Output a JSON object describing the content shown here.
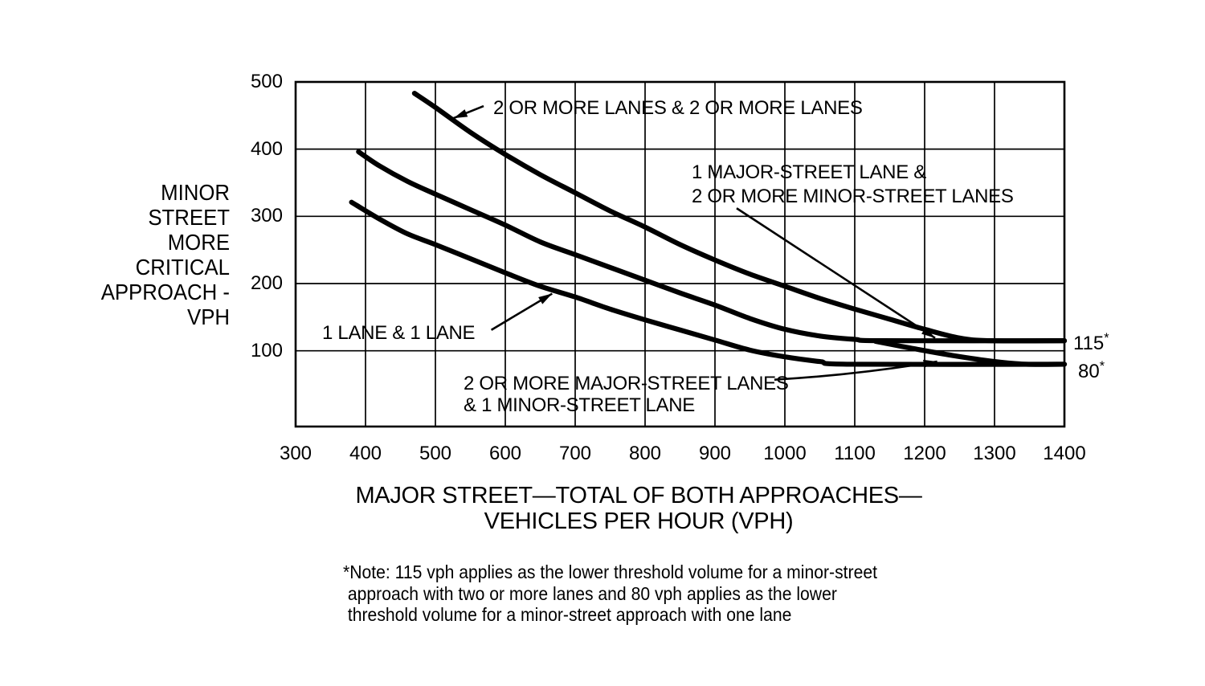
{
  "figure": {
    "background": "#ffffff",
    "ink": "#000000"
  },
  "thresholds": [
    {
      "value": "115",
      "mark": "*",
      "vph": 115
    },
    {
      "value": "80",
      "mark": "*",
      "vph": 80
    }
  ],
  "note_text": "*Note: 115 vph applies as the lower threshold volume for a minor-street\n approach with two or more lanes and 80 vph applies as the lower\n threshold volume for a minor-street approach with one lane",
  "chart_data": {
    "type": "line",
    "title": "",
    "xlabel": "MAJOR STREET—TOTAL OF BOTH APPROACHES—VEHICLES PER HOUR (VPH)",
    "ylabel": "MINOR STREET MORE CRITICAL APPROACH - VPH",
    "xlabel_block": "MAJOR STREET—TOTAL OF BOTH APPROACHES—\nVEHICLES PER HOUR (VPH)",
    "ylabel_block": "MINOR\nSTREET\nMORE\nCRITICAL\nAPPROACH -\nVPH",
    "xlim": [
      300,
      1400
    ],
    "ylim": [
      0,
      500
    ],
    "x_ticks": [
      300,
      400,
      500,
      600,
      700,
      800,
      900,
      1000,
      1100,
      1200,
      1300,
      1400
    ],
    "y_ticks": [
      100,
      200,
      300,
      400,
      500
    ],
    "grid": true,
    "legend_position": "none",
    "series": [
      {
        "name": "2 OR MORE LANES & 2 OR MORE LANES",
        "points": [
          [
            470,
            483
          ],
          [
            500,
            462
          ],
          [
            550,
            425
          ],
          [
            600,
            392
          ],
          [
            650,
            362
          ],
          [
            700,
            335
          ],
          [
            750,
            308
          ],
          [
            800,
            284
          ],
          [
            850,
            258
          ],
          [
            900,
            235
          ],
          [
            950,
            214
          ],
          [
            1000,
            196
          ],
          [
            1050,
            178
          ],
          [
            1100,
            162
          ],
          [
            1150,
            147
          ],
          [
            1200,
            132
          ],
          [
            1250,
            119
          ],
          [
            1295,
            115
          ],
          [
            1400,
            115
          ]
        ]
      },
      {
        "name": "1 MAJOR-STREET LANE & 2 OR MORE MINOR-STREET LANES",
        "points": [
          [
            390,
            396
          ],
          [
            420,
            375
          ],
          [
            460,
            352
          ],
          [
            500,
            333
          ],
          [
            550,
            310
          ],
          [
            600,
            287
          ],
          [
            650,
            262
          ],
          [
            700,
            243
          ],
          [
            750,
            224
          ],
          [
            800,
            205
          ],
          [
            850,
            186
          ],
          [
            900,
            168
          ],
          [
            950,
            148
          ],
          [
            1000,
            132
          ],
          [
            1050,
            122
          ],
          [
            1100,
            117
          ],
          [
            1140,
            115
          ],
          [
            1400,
            115
          ]
        ]
      },
      {
        "name": "2 OR MORE MAJOR-STREET LANES & 1 MINOR-STREET LANE",
        "points": [
          [
            1130,
            114
          ],
          [
            1180,
            104
          ],
          [
            1240,
            93
          ],
          [
            1300,
            84
          ],
          [
            1345,
            80
          ],
          [
            1400,
            80
          ]
        ]
      },
      {
        "name": "1 LANE & 1 LANE",
        "points": [
          [
            380,
            321
          ],
          [
            420,
            296
          ],
          [
            460,
            274
          ],
          [
            500,
            258
          ],
          [
            550,
            237
          ],
          [
            600,
            216
          ],
          [
            650,
            196
          ],
          [
            700,
            180
          ],
          [
            750,
            162
          ],
          [
            800,
            146
          ],
          [
            850,
            131
          ],
          [
            900,
            116
          ],
          [
            950,
            101
          ],
          [
            1000,
            91
          ],
          [
            1050,
            84
          ],
          [
            1095,
            80
          ],
          [
            1400,
            80
          ]
        ]
      }
    ],
    "annotations": [
      {
        "text": "2 OR MORE LANES & 2 OR MORE LANES",
        "arrow": {
          "from": [
            569,
            464
          ],
          "to": [
            526,
            446
          ]
        }
      },
      {
        "text": "1 MAJOR-STREET LANE &\n2 OR MORE MINOR-STREET LANES",
        "arrow": {
          "from": [
            931,
            312
          ],
          "to": [
            1215,
            119
          ]
        }
      },
      {
        "text": "1 LANE & 1 LANE",
        "arrow": {
          "from": [
            580,
            131
          ],
          "to": [
            667,
            185
          ]
        }
      },
      {
        "text": "2 OR MORE MAJOR-STREET LANES\n& 1 MINOR-STREET LANE",
        "arrow": {
          "from": [
            985,
            57
          ],
          "via": [
            1101,
            64
          ],
          "to": [
            1218,
            84
          ]
        }
      }
    ]
  }
}
